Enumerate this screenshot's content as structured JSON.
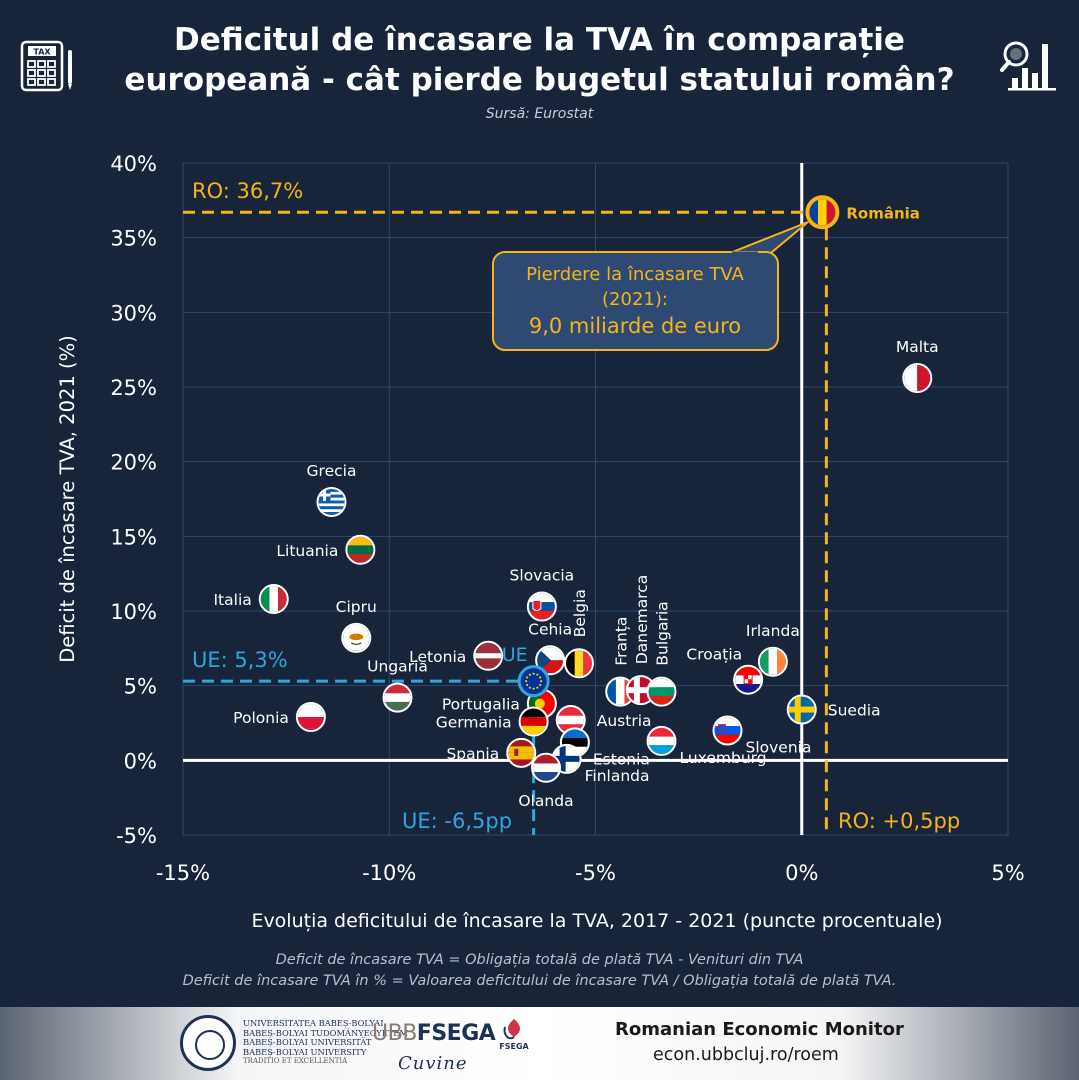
{
  "header": {
    "title_line1": "Deficitul de încasare la TVA în comparație",
    "title_line2": "europeană - cât pierde bugetul statului român?",
    "source": "Sursă: Eurostat",
    "left_icon": "tax-calculator-icon",
    "right_icon": "magnifier-bar-chart-icon",
    "calc_label": "TAX"
  },
  "chart_data": {
    "type": "scatter",
    "xlabel": "Evoluția deficitului de încasare la TVA, 2017 - 2021 (puncte procentuale)",
    "ylabel": "Deficit de încasare TVA, 2021 (%)",
    "xlim": [
      -15,
      5
    ],
    "ylim": [
      -5,
      40
    ],
    "x_ticks": [
      {
        "value": -15,
        "label": "-15%"
      },
      {
        "value": -10,
        "label": "-10%"
      },
      {
        "value": -5,
        "label": "-5%"
      },
      {
        "value": 0,
        "label": "0%"
      },
      {
        "value": 5,
        "label": "5%"
      }
    ],
    "y_ticks": [
      {
        "value": -5,
        "label": "-5%"
      },
      {
        "value": 0,
        "label": "0%"
      },
      {
        "value": 5,
        "label": "5%"
      },
      {
        "value": 10,
        "label": "10%"
      },
      {
        "value": 15,
        "label": "15%"
      },
      {
        "value": 20,
        "label": "20%"
      },
      {
        "value": 25,
        "label": "25%"
      },
      {
        "value": 30,
        "label": "30%"
      },
      {
        "value": 35,
        "label": "35%"
      },
      {
        "value": 40,
        "label": "40%"
      }
    ],
    "grid": true,
    "points": [
      {
        "name": "România",
        "x": 0.5,
        "y": 36.7,
        "flag": "romania",
        "label_pos": "right",
        "highlight": true
      },
      {
        "name": "Malta",
        "x": 2.8,
        "y": 25.6,
        "flag": "malta",
        "label_pos": "above"
      },
      {
        "name": "Grecia",
        "x": -11.4,
        "y": 17.3,
        "flag": "greece",
        "label_pos": "above"
      },
      {
        "name": "Lituania",
        "x": -10.7,
        "y": 14.1,
        "flag": "lithuania",
        "label_pos": "left"
      },
      {
        "name": "Italia",
        "x": -12.8,
        "y": 10.8,
        "flag": "italy",
        "label_pos": "left"
      },
      {
        "name": "Cipru",
        "x": -10.8,
        "y": 8.2,
        "flag": "cyprus",
        "label_pos": "above"
      },
      {
        "name": "Slovacia",
        "x": -6.3,
        "y": 10.3,
        "flag": "slovakia",
        "label_pos": "above"
      },
      {
        "name": "Letonia",
        "x": -7.6,
        "y": 7.0,
        "flag": "latvia",
        "label_pos": "left"
      },
      {
        "name": "Cehia",
        "x": -6.1,
        "y": 6.7,
        "flag": "czechia",
        "label_pos": "above"
      },
      {
        "name": "Belgia",
        "x": -5.4,
        "y": 6.5,
        "flag": "belgium",
        "label_pos": "vertical"
      },
      {
        "name": "Franța",
        "x": -4.4,
        "y": 4.6,
        "flag": "france",
        "label_pos": "vertical"
      },
      {
        "name": "Danemarca",
        "x": -3.9,
        "y": 4.7,
        "flag": "denmark",
        "label_pos": "vertical"
      },
      {
        "name": "Bulgaria",
        "x": -3.4,
        "y": 4.6,
        "flag": "bulgaria",
        "label_pos": "vertical"
      },
      {
        "name": "Croația",
        "x": -1.3,
        "y": 5.4,
        "flag": "croatia",
        "label_pos": "above-left"
      },
      {
        "name": "Irlanda",
        "x": -0.7,
        "y": 6.6,
        "flag": "ireland",
        "label_pos": "above"
      },
      {
        "name": "Suedia",
        "x": 0.0,
        "y": 3.4,
        "flag": "sweden",
        "label_pos": "right"
      },
      {
        "name": "Slovenia",
        "x": -1.8,
        "y": 2.0,
        "flag": "slovenia",
        "label_pos": "right-below"
      },
      {
        "name": "Luxemburg",
        "x": -3.4,
        "y": 1.3,
        "flag": "luxembourg",
        "label_pos": "right-below"
      },
      {
        "name": "Ungaria",
        "x": -9.8,
        "y": 4.2,
        "flag": "hungary",
        "label_pos": "above"
      },
      {
        "name": "Polonia",
        "x": -11.9,
        "y": 2.9,
        "flag": "poland",
        "label_pos": "left"
      },
      {
        "name": "Portugalia",
        "x": -6.3,
        "y": 3.8,
        "flag": "portugal",
        "label_pos": "left"
      },
      {
        "name": "Germania",
        "x": -6.5,
        "y": 2.6,
        "flag": "germany",
        "label_pos": "left"
      },
      {
        "name": "Austria",
        "x": -5.6,
        "y": 2.7,
        "flag": "austria",
        "label_pos": "right"
      },
      {
        "name": "Estonia",
        "x": -5.5,
        "y": 1.2,
        "flag": "estonia",
        "label_pos": "right-below"
      },
      {
        "name": "Spania",
        "x": -6.8,
        "y": 0.5,
        "flag": "spain",
        "label_pos": "left"
      },
      {
        "name": "Finlanda",
        "x": -5.7,
        "y": 0.1,
        "flag": "finland",
        "label_pos": "right-below"
      },
      {
        "name": "Olanda",
        "x": -6.2,
        "y": -0.5,
        "flag": "netherlands",
        "label_pos": "below"
      },
      {
        "name": "UE",
        "x": -6.5,
        "y": 5.3,
        "flag": "eu",
        "label_pos": "above-left-blue"
      }
    ],
    "annotations": {
      "ro_y": "RO: 36,7%",
      "ro_x": "RO: +0,5pp",
      "eu_y": "UE: 5,3%",
      "eu_x": "UE: -6,5pp",
      "callout_line1": "Pierdere la încasare TVA",
      "callout_line2": "(2021):",
      "callout_line3": "9,0 miliarde de euro"
    },
    "colors": {
      "romania_accent": "#f4b41a",
      "eu_accent": "#2ea6df",
      "background": "#17243a",
      "grid": "#2e4a6e"
    }
  },
  "notes": {
    "line1": "Deficit de încasare TVA = Obligația totală de plată TVA - Venituri din TVA",
    "line2": "Deficit de încasare TVA în % = Valoarea  deficitului de încasare TVA / Obligația totală de plată TVA."
  },
  "footer": {
    "uni_lines": [
      "UNIVERSITATEA BABEȘ-BOLYAI",
      "BABEȘ-BOLYAI TUDOMÁNYEGYETEM",
      "BABEȘ-BOLYAI UNIVERSITÄT",
      "BABEȘ-BOLYAI UNIVERSITY"
    ],
    "uni_motto": "TRADITIO ET EXCELLENTIA",
    "fsega_left": "UBB",
    "fsega_right": "FSEGA",
    "fsega_badge": "FSEGA",
    "signature": "Cuvine",
    "roem_title": "Romanian Economic Monitor",
    "roem_url": "econ.ubbcluj.ro/roem"
  }
}
